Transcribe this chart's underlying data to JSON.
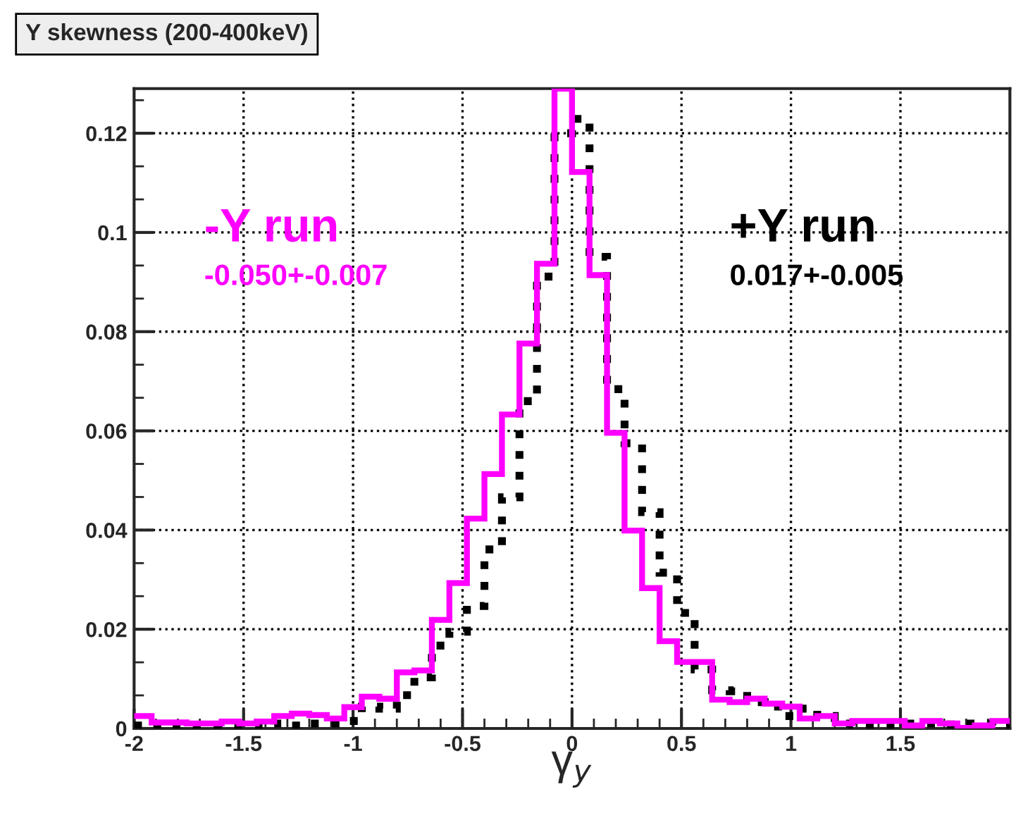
{
  "chart_data": {
    "type": "histogram",
    "title": "Y skewness (200-400keV)",
    "xlabel": "γ$_{y}$",
    "bins": [
      -2.0,
      -1.92,
      -1.84,
      -1.76,
      -1.68,
      -1.6,
      -1.52,
      -1.44,
      -1.36,
      -1.28,
      -1.2,
      -1.12,
      -1.04,
      -0.96,
      -0.88,
      -0.8,
      -0.72,
      -0.64,
      -0.56,
      -0.48,
      -0.4,
      -0.32,
      -0.24,
      -0.16,
      -0.08,
      0.0,
      0.08,
      0.16,
      0.24,
      0.32,
      0.4,
      0.48,
      0.56,
      0.64,
      0.72,
      0.8,
      0.88,
      0.96,
      1.04,
      1.12,
      1.2,
      1.28,
      1.36,
      1.44,
      1.52,
      1.6,
      1.68,
      1.76,
      1.84,
      1.92,
      2.0
    ],
    "series": [
      {
        "name": "-Y run",
        "color": "#ff00ff",
        "line_style": "solid",
        "values": [
          0.0025,
          0.0012,
          0.0012,
          0.001,
          0.001,
          0.0014,
          0.001,
          0.0014,
          0.0025,
          0.003,
          0.0027,
          0.002,
          0.0043,
          0.0064,
          0.006,
          0.0113,
          0.0117,
          0.0219,
          0.0293,
          0.0423,
          0.0513,
          0.0633,
          0.0776,
          0.0937,
          0.129,
          0.1122,
          0.0914,
          0.0596,
          0.0399,
          0.0283,
          0.0176,
          0.0134,
          0.0134,
          0.0058,
          0.0053,
          0.006,
          0.005,
          0.0044,
          0.002,
          0.0025,
          0.001,
          0.0015,
          0.0015,
          0.0015,
          0.0006,
          0.0015,
          0.001,
          0.0001,
          0.0006,
          0.0015
        ]
      },
      {
        "name": "+Y run",
        "color": "#000000",
        "line_style": "dotted",
        "values": [
          0.0006,
          0.0003,
          0.0006,
          0.0005,
          0.0005,
          0.0005,
          0.0005,
          0.0006,
          0.001,
          0.0006,
          0.001,
          0.001,
          0.0015,
          0.0044,
          0.004,
          0.0067,
          0.0103,
          0.0167,
          0.0195,
          0.0247,
          0.0361,
          0.0466,
          0.066,
          0.0911,
          0.12,
          0.1229,
          0.0951,
          0.0684,
          0.0575,
          0.0436,
          0.0314,
          0.0233,
          0.0119,
          0.0077,
          0.0075,
          0.0053,
          0.0044,
          0.0025,
          0.004,
          0.0025,
          0.001,
          0.0008,
          0.0008,
          0.0008,
          0.001,
          0.001,
          0.0008,
          0.001,
          0.001,
          0.0006
        ]
      }
    ],
    "annotations": [
      "-0.050+-0.007",
      "0.017+-0.005"
    ],
    "xlim": [
      -2,
      2
    ],
    "ylim": [
      0,
      0.129
    ],
    "xticks": [
      -2,
      -1.5,
      -1,
      -0.5,
      0,
      0.5,
      1,
      1.5
    ],
    "yticks": [
      0,
      0.02,
      0.04,
      0.06,
      0.08,
      0.1,
      0.12
    ],
    "grid": true,
    "legend": false
  }
}
